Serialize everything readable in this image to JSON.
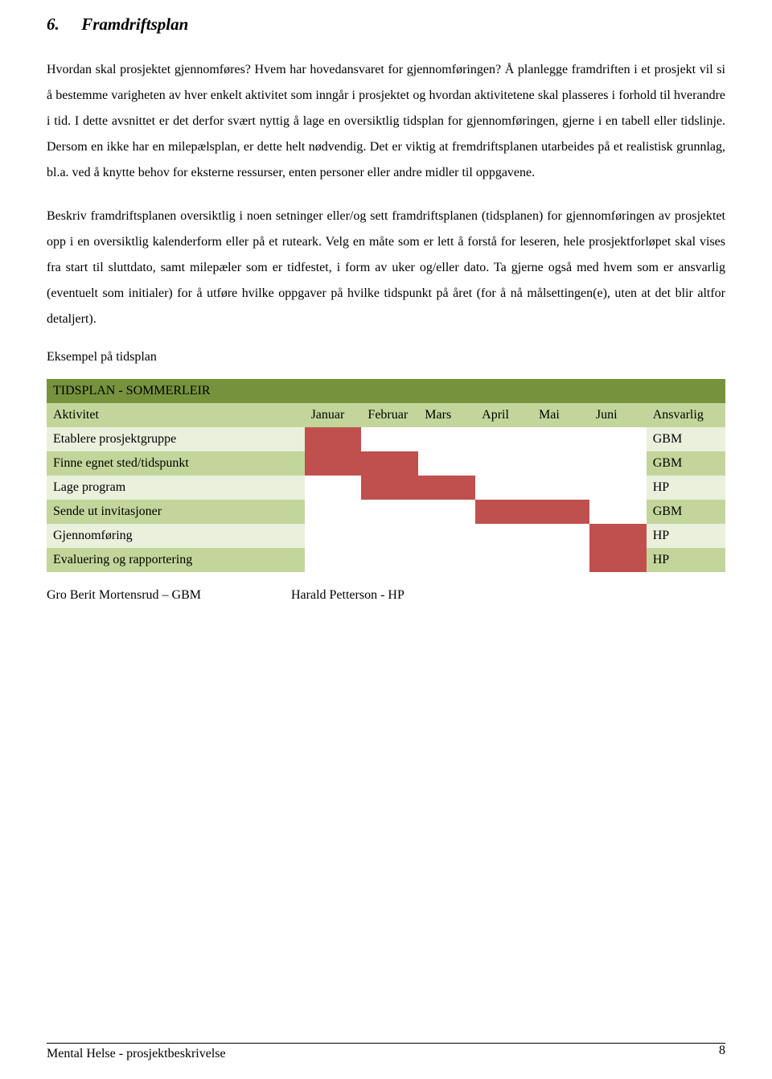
{
  "heading": {
    "number": "6.",
    "title": "Framdriftsplan"
  },
  "paragraphs": {
    "p1": "Hvordan skal prosjektet gjennomføres? Hvem har hovedansvaret for gjennomføringen? Å planlegge framdriften i et prosjekt vil si å bestemme varigheten av hver enkelt aktivitet som inngår i prosjektet og hvordan aktivitetene skal plasseres i forhold til hverandre i tid. I dette avsnittet er det derfor svært nyttig å lage en oversiktlig tidsplan for gjennomføringen, gjerne i en tabell eller tidslinje. Dersom en ikke har en milepælsplan, er dette helt nødvendig. Det er viktig at fremdriftsplanen utarbeides på et realistisk grunnlag, bl.a. ved å knytte behov for eksterne ressurser, enten personer eller andre midler til oppgavene.",
    "p2": "Beskriv framdriftsplanen oversiktlig i noen setninger eller/og sett framdriftsplanen (tidsplanen) for gjennomføringen av prosjektet opp i en oversiktlig kalenderform eller på et ruteark. Velg en måte som er lett å forstå for leseren, hele prosjektforløpet skal vises fra start til sluttdato, samt milepæler som er tidfestet, i form av uker og/eller dato. Ta gjerne også med hvem som er ansvarlig (eventuelt som initialer) for å utføre hvilke oppgaver på hvilke tidspunkt på året (for å nå målsettingen(e), uten at det blir altfor detaljert)."
  },
  "example_label": "Eksempel på tidsplan",
  "table": {
    "title": "TIDSPLAN - SOMMERLEIR",
    "columns": [
      "Aktivitet",
      "Januar",
      "Februar",
      "Mars",
      "April",
      "Mai",
      "Juni",
      "Ansvarlig"
    ],
    "colors": {
      "title_bg": "#76923c",
      "header_bg": "#c2d69b",
      "row_light": "#eaf0dc",
      "row_med": "#c2d69b",
      "fill": "#c0504d",
      "white": "#ffffff"
    },
    "rows": [
      {
        "activity": "Etablere prosjektgruppe",
        "months": [
          true,
          false,
          false,
          false,
          false,
          false
        ],
        "ansvarlig": "GBM",
        "bg": "light"
      },
      {
        "activity": "Finne egnet sted/tidspunkt",
        "months": [
          true,
          true,
          false,
          false,
          false,
          false
        ],
        "ansvarlig": "GBM",
        "bg": "med"
      },
      {
        "activity": "Lage program",
        "months": [
          false,
          true,
          true,
          false,
          false,
          false
        ],
        "ansvarlig": "HP",
        "bg": "light"
      },
      {
        "activity": "Sende ut invitasjoner",
        "months": [
          false,
          false,
          false,
          true,
          true,
          false
        ],
        "ansvarlig": "GBM",
        "bg": "med"
      },
      {
        "activity": "Gjennomføring",
        "months": [
          false,
          false,
          false,
          false,
          false,
          true
        ],
        "ansvarlig": "HP",
        "bg": "light"
      },
      {
        "activity": "Evaluering og rapportering",
        "months": [
          false,
          false,
          false,
          false,
          false,
          true
        ],
        "ansvarlig": "HP",
        "bg": "med"
      }
    ]
  },
  "legend": {
    "left": "Gro Berit Mortensrud – GBM",
    "right": "Harald Petterson - HP"
  },
  "footer": {
    "text": "Mental Helse - prosjektbeskrivelse",
    "page": "8"
  }
}
